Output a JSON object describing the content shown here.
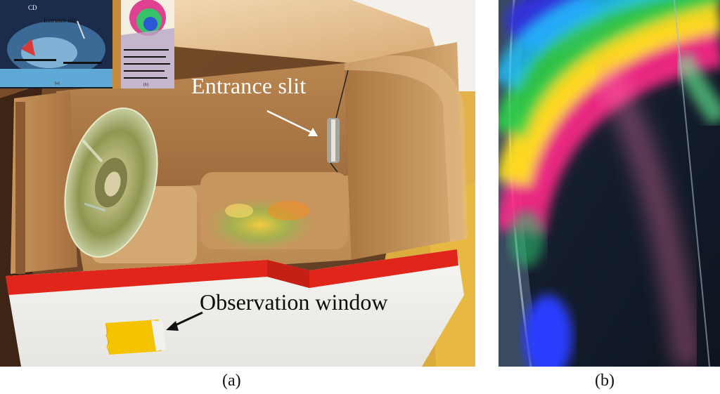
{
  "figure": {
    "panel_a": {
      "caption": "(a)",
      "labels": {
        "entrance_slit": "Entrance slit",
        "observation_window": "Observation window"
      },
      "inset": {
        "label_cd": "CD",
        "label_slit": "Entrance slit",
        "caption_a": "(a)",
        "caption_b": "(b)"
      }
    },
    "panel_b": {
      "caption": "(b)"
    }
  },
  "colors": {
    "cardboard": "#c8945a",
    "red_stripe": "#e0261b",
    "white_box": "#f3f2ef",
    "tape_yellow": "#f5c400",
    "floor_yellow": "#e6b33b"
  }
}
